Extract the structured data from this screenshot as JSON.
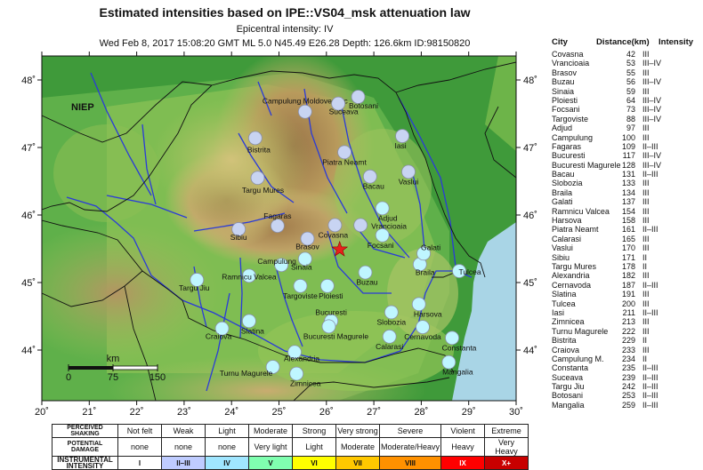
{
  "title": "Estimated intensities based on IPE::VS04_msk attenuation law",
  "subtitle": "Epicentral intensity: IV",
  "event_line": "Wed Feb  8, 2017 15:08:20 GMT ML 5.0 N45.49 E26.28 Depth: 126.6km ID:98150820",
  "map": {
    "niep_label": "NIEP",
    "lon_ticks": [
      "20˚",
      "21˚",
      "22˚",
      "23˚",
      "24˚",
      "25˚",
      "26˚",
      "27˚",
      "28˚",
      "29˚",
      "30˚"
    ],
    "lat_ticks": [
      "48˚",
      "47˚",
      "46˚",
      "45˚",
      "44˚"
    ],
    "scale_unit": "km",
    "scale_labels": [
      "0",
      "75",
      "150"
    ],
    "epicenter": {
      "lon": 26.28,
      "lat": 45.49
    },
    "colors": {
      "station_light": "#c8d4f2",
      "station_cyan": "#bff6ff",
      "epicenter": "#e8211c",
      "sea": "#a9d5e6",
      "border": "#111111",
      "river": "#2a3bd8"
    },
    "stations": [
      {
        "name": "Covasna",
        "lon": 26.18,
        "lat": 45.85,
        "cls": "light"
      },
      {
        "name": "Vrancioaia",
        "lon": 26.72,
        "lat": 45.85,
        "cls": "light"
      },
      {
        "name": "Brasov",
        "lon": 25.6,
        "lat": 45.65,
        "cls": "light"
      },
      {
        "name": "Buzau",
        "lon": 26.82,
        "lat": 45.15,
        "cls": "cyan"
      },
      {
        "name": "Sinaia",
        "lon": 25.55,
        "lat": 45.35,
        "cls": "cyan"
      },
      {
        "name": "Ploiesti",
        "lon": 26.02,
        "lat": 44.95,
        "cls": "cyan"
      },
      {
        "name": "Focsani",
        "lon": 27.18,
        "lat": 45.7,
        "cls": "cyan"
      },
      {
        "name": "Targoviste",
        "lon": 25.45,
        "lat": 44.95,
        "cls": "cyan"
      },
      {
        "name": "Adjud",
        "lon": 27.18,
        "lat": 46.1,
        "cls": "cyan"
      },
      {
        "name": "Campulung",
        "lon": 25.05,
        "lat": 45.26,
        "cls": "cyan"
      },
      {
        "name": "Fagaras",
        "lon": 24.97,
        "lat": 45.84,
        "cls": "light"
      },
      {
        "name": "Bucuresti",
        "lon": 26.1,
        "lat": 44.43,
        "cls": "cyan"
      },
      {
        "name": "Bucuresti Magurele",
        "lon": 26.05,
        "lat": 44.35,
        "cls": "cyan"
      },
      {
        "name": "Bacau",
        "lon": 26.92,
        "lat": 46.57,
        "cls": "light"
      },
      {
        "name": "Slobozia",
        "lon": 27.37,
        "lat": 44.56,
        "cls": "cyan"
      },
      {
        "name": "Braila",
        "lon": 27.97,
        "lat": 45.27,
        "cls": "cyan"
      },
      {
        "name": "Galati",
        "lon": 28.05,
        "lat": 45.43,
        "cls": "cyan"
      },
      {
        "name": "Ramnicu Valcea",
        "lon": 24.37,
        "lat": 45.1,
        "cls": "cyan"
      },
      {
        "name": "Harsova",
        "lon": 27.95,
        "lat": 44.68,
        "cls": "cyan"
      },
      {
        "name": "Piatra Neamt",
        "lon": 26.38,
        "lat": 46.93,
        "cls": "light"
      },
      {
        "name": "Calarasi",
        "lon": 27.33,
        "lat": 44.2,
        "cls": "cyan"
      },
      {
        "name": "Vaslui",
        "lon": 27.73,
        "lat": 46.64,
        "cls": "light"
      },
      {
        "name": "Sibiu",
        "lon": 24.15,
        "lat": 45.79,
        "cls": "light"
      },
      {
        "name": "Targu Mures",
        "lon": 24.55,
        "lat": 46.55,
        "cls": "light"
      },
      {
        "name": "Alexandria",
        "lon": 25.33,
        "lat": 43.97,
        "cls": "cyan"
      },
      {
        "name": "Cernavoda",
        "lon": 28.03,
        "lat": 44.34,
        "cls": "cyan"
      },
      {
        "name": "Slatina",
        "lon": 24.37,
        "lat": 44.43,
        "cls": "cyan"
      },
      {
        "name": "Tulcea",
        "lon": 28.8,
        "lat": 45.17,
        "cls": "cyan"
      },
      {
        "name": "Iasi",
        "lon": 27.6,
        "lat": 47.17,
        "cls": "light"
      },
      {
        "name": "Zimnicea",
        "lon": 25.37,
        "lat": 43.65,
        "cls": "cyan"
      },
      {
        "name": "Turnu Magurele",
        "lon": 24.87,
        "lat": 43.75,
        "cls": "cyan"
      },
      {
        "name": "Bistrita",
        "lon": 24.5,
        "lat": 47.14,
        "cls": "light"
      },
      {
        "name": "Craiova",
        "lon": 23.8,
        "lat": 44.32,
        "cls": "cyan"
      },
      {
        "name": "Campulung Moldovenesc",
        "lon": 25.55,
        "lat": 47.53,
        "cls": "light"
      },
      {
        "name": "Constanta",
        "lon": 28.65,
        "lat": 44.18,
        "cls": "cyan"
      },
      {
        "name": "Suceava",
        "lon": 26.25,
        "lat": 47.65,
        "cls": "light"
      },
      {
        "name": "Targu Jiu",
        "lon": 23.27,
        "lat": 45.04,
        "cls": "cyan"
      },
      {
        "name": "Botosani",
        "lon": 26.67,
        "lat": 47.75,
        "cls": "light"
      },
      {
        "name": "Mangalia",
        "lon": 28.58,
        "lat": 43.82,
        "cls": "cyan"
      }
    ]
  },
  "table": {
    "headers": [
      "City",
      "Distance(km)",
      "Intensity"
    ],
    "rows": [
      [
        "Covasna",
        "42",
        "III"
      ],
      [
        "Vrancioaia",
        "53",
        "III–IV"
      ],
      [
        "Brasov",
        "55",
        "III"
      ],
      [
        "Buzau",
        "56",
        "III–IV"
      ],
      [
        "Sinaia",
        "59",
        "III"
      ],
      [
        "Ploiesti",
        "64",
        "III–IV"
      ],
      [
        "Focsani",
        "73",
        "III–IV"
      ],
      [
        "Targoviste",
        "88",
        "III–IV"
      ],
      [
        "Adjud",
        "97",
        "III"
      ],
      [
        "Campulung",
        "100",
        "III"
      ],
      [
        "Fagaras",
        "109",
        "II–III"
      ],
      [
        "Bucuresti",
        "117",
        "III–IV"
      ],
      [
        "Bucuresti Magurele",
        "128",
        "III–IV"
      ],
      [
        "Bacau",
        "131",
        "II–III"
      ],
      [
        "Slobozia",
        "133",
        "III"
      ],
      [
        "Braila",
        "134",
        "III"
      ],
      [
        "Galati",
        "137",
        "III"
      ],
      [
        "Ramnicu Valcea",
        "154",
        "III"
      ],
      [
        "Harsova",
        "158",
        "III"
      ],
      [
        "Piatra Neamt",
        "161",
        "II–III"
      ],
      [
        "Calarasi",
        "165",
        "III"
      ],
      [
        "Vaslui",
        "170",
        "III"
      ],
      [
        "Sibiu",
        "171",
        "II"
      ],
      [
        "Targu Mures",
        "178",
        "II"
      ],
      [
        "Alexandria",
        "182",
        "III"
      ],
      [
        "Cernavoda",
        "187",
        "II–III"
      ],
      [
        "Slatina",
        "191",
        "III"
      ],
      [
        "Tulcea",
        "200",
        "III"
      ],
      [
        "Iasi",
        "211",
        "II–III"
      ],
      [
        "Zimnicea",
        "213",
        "III"
      ],
      [
        "Turnu Magurele",
        "222",
        "III"
      ],
      [
        "Bistrita",
        "229",
        "II"
      ],
      [
        "Craiova",
        "233",
        "III"
      ],
      [
        "Campulung M.",
        "234",
        "II"
      ],
      [
        "Constanta",
        "235",
        "II–III"
      ],
      [
        "Suceava",
        "239",
        "II–III"
      ],
      [
        "Targu Jiu",
        "242",
        "II–III"
      ],
      [
        "Botosani",
        "253",
        "II–III"
      ],
      [
        "Mangalia",
        "259",
        "II–III"
      ]
    ]
  },
  "legend": {
    "labels": [
      "PERCEIVED SHAKING",
      "POTENTIAL DAMAGE",
      "INSTRUMENTAL INTENSITY"
    ],
    "shaking": [
      "Not felt",
      "Weak",
      "Light",
      "Moderate",
      "Strong",
      "Very strong",
      "Severe",
      "Violent",
      "Extreme"
    ],
    "damage": [
      "none",
      "none",
      "none",
      "Very light",
      "Light",
      "Moderate",
      "Moderate/Heavy",
      "Heavy",
      "Very Heavy"
    ],
    "intensity": [
      "I",
      "II–III",
      "IV",
      "V",
      "VI",
      "VII",
      "VIII",
      "IX",
      "X+"
    ],
    "colors": [
      "#ffffff",
      "#bfccff",
      "#a0e6ff",
      "#80ffb0",
      "#ffff00",
      "#ffc800",
      "#ff9100",
      "#ff0000",
      "#c80000"
    ]
  }
}
